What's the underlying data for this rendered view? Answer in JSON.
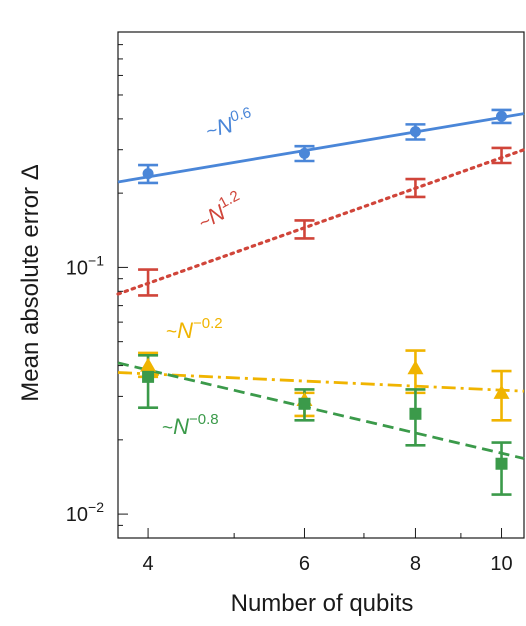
{
  "chart_data": {
    "type": "scatter",
    "xlabel": "Number of qubits",
    "ylabel": "Mean absolute error Δ",
    "x_scale": "log",
    "y_scale": "log",
    "xlim": [
      3.7,
      10.6
    ],
    "ylim": [
      0.008,
      0.9
    ],
    "x_ticks": [
      4,
      6,
      8,
      10
    ],
    "y_tick_labels": [
      {
        "value": 0.1,
        "base": "10",
        "exp": "−1"
      },
      {
        "value": 0.01,
        "base": "10",
        "exp": "−2"
      }
    ],
    "series": [
      {
        "key": "blue",
        "color": "#4a86d8",
        "marker": "circle",
        "line_style": "solid",
        "fit_label": {
          "prefix": "~",
          "base": "N",
          "exp": "0.6"
        },
        "points": [
          {
            "x": 4,
            "y": 0.24,
            "lo": 0.22,
            "hi": 0.26
          },
          {
            "x": 6,
            "y": 0.29,
            "lo": 0.27,
            "hi": 0.31
          },
          {
            "x": 8,
            "y": 0.355,
            "lo": 0.33,
            "hi": 0.38
          },
          {
            "x": 10,
            "y": 0.41,
            "lo": 0.385,
            "hi": 0.435
          }
        ],
        "fit": {
          "x": [
            3.7,
            10.6
          ],
          "y": [
            0.222,
            0.42
          ]
        }
      },
      {
        "key": "red",
        "color": "#d0453a",
        "marker": "none",
        "line_style": "dotted",
        "fit_label": {
          "prefix": "~",
          "base": "N",
          "exp": "1.2"
        },
        "points": [
          {
            "x": 4,
            "y": 0.087,
            "lo": 0.077,
            "hi": 0.098
          },
          {
            "x": 6,
            "y": 0.142,
            "lo": 0.131,
            "hi": 0.155
          },
          {
            "x": 8,
            "y": 0.21,
            "lo": 0.193,
            "hi": 0.228
          },
          {
            "x": 10,
            "y": 0.285,
            "lo": 0.265,
            "hi": 0.305
          }
        ],
        "fit": {
          "x": [
            3.7,
            10.6
          ],
          "y": [
            0.078,
            0.3
          ]
        }
      },
      {
        "key": "yellow",
        "color": "#f0b400",
        "marker": "triangle",
        "line_style": "dashdot",
        "fit_label": {
          "prefix": "~",
          "base": "N",
          "exp": "−0.2"
        },
        "points": [
          {
            "x": 4,
            "y": 0.04,
            "lo": 0.036,
            "hi": 0.045
          },
          {
            "x": 6,
            "y": 0.029,
            "lo": 0.025,
            "hi": 0.031
          },
          {
            "x": 8,
            "y": 0.039,
            "lo": 0.031,
            "hi": 0.046
          },
          {
            "x": 10,
            "y": 0.031,
            "lo": 0.024,
            "hi": 0.038
          }
        ],
        "fit": {
          "x": [
            3.7,
            10.6
          ],
          "y": [
            0.0375,
            0.0315
          ]
        }
      },
      {
        "key": "green",
        "color": "#3b9a4a",
        "marker": "square",
        "line_style": "dashed",
        "fit_label": {
          "prefix": "~",
          "base": "N",
          "exp": "−0.8"
        },
        "points": [
          {
            "x": 4,
            "y": 0.036,
            "lo": 0.027,
            "hi": 0.044
          },
          {
            "x": 6,
            "y": 0.028,
            "lo": 0.024,
            "hi": 0.032
          },
          {
            "x": 8,
            "y": 0.0255,
            "lo": 0.019,
            "hi": 0.032
          },
          {
            "x": 10,
            "y": 0.016,
            "lo": 0.012,
            "hi": 0.0195
          }
        ],
        "fit": {
          "x": [
            3.7,
            10.6
          ],
          "y": [
            0.041,
            0.0168
          ]
        }
      }
    ]
  }
}
